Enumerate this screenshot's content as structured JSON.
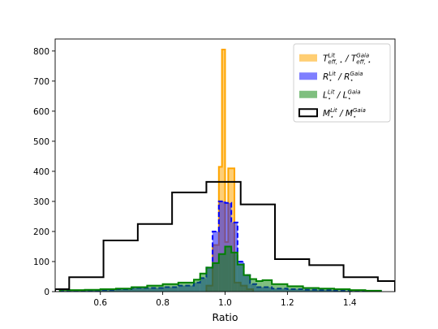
{
  "chart_data": {
    "type": "histogram",
    "xlabel": "Ratio",
    "ylabel": "",
    "xlim": [
      0.455,
      1.545
    ],
    "ylim": [
      0,
      840
    ],
    "xticks": [
      0.6,
      0.8,
      1.0,
      1.2,
      1.4
    ],
    "xtick_labels": [
      "0.6",
      "0.8",
      "1.0",
      "1.2",
      "1.4"
    ],
    "yticks": [
      0,
      100,
      200,
      300,
      400,
      500,
      600,
      700,
      800
    ],
    "ytick_labels": [
      "0",
      "100",
      "200",
      "300",
      "400",
      "500",
      "600",
      "700",
      "800"
    ],
    "legend_position": "upper right",
    "series": [
      {
        "key": "teff",
        "legend": {
          "base": "T",
          "sub1": "eff, ⋆",
          "sup1": "Lit",
          "sep": " / ",
          "base2": "T",
          "sub2": "eff, ⋆",
          "sup2": "Gaia"
        },
        "style": "filled",
        "color": "#ffa500",
        "fill_alpha": 0.55,
        "edges": [
          0.94,
          0.96,
          0.98,
          0.99,
          1.0,
          1.01,
          1.03,
          1.05,
          1.07,
          1.09
        ],
        "counts": [
          20,
          155,
          415,
          805,
          165,
          410,
          30,
          20,
          8
        ]
      },
      {
        "key": "radius",
        "legend": {
          "base": "R",
          "sub1": "⋆",
          "sup1": "Lit",
          "sep": " / ",
          "base2": "R",
          "sub2": "⋆",
          "sup2": "Gaia"
        },
        "style": "filled-dashed",
        "color": "#0000ff",
        "fill_alpha": 0.5,
        "edges": [
          0.47,
          0.5,
          0.55,
          0.6,
          0.65,
          0.7,
          0.75,
          0.8,
          0.85,
          0.9,
          0.92,
          0.94,
          0.96,
          0.98,
          1.0,
          1.02,
          1.04,
          1.06,
          1.08,
          1.1,
          1.15,
          1.2,
          1.25,
          1.3,
          1.35,
          1.4,
          1.45,
          1.5
        ],
        "counts": [
          2,
          3,
          4,
          5,
          8,
          12,
          12,
          15,
          20,
          30,
          45,
          80,
          200,
          300,
          295,
          230,
          100,
          55,
          25,
          15,
          10,
          8,
          6,
          5,
          3,
          2,
          2
        ]
      },
      {
        "key": "lum",
        "legend": {
          "base": "L",
          "sub1": "⋆",
          "sup1": "Lit",
          "sep": " / ",
          "base2": "L",
          "sub2": "⋆",
          "sup2": "Gaia"
        },
        "style": "filled",
        "color": "#008000",
        "fill_alpha": 0.5,
        "edges": [
          0.47,
          0.5,
          0.55,
          0.6,
          0.65,
          0.7,
          0.75,
          0.8,
          0.85,
          0.9,
          0.92,
          0.94,
          0.96,
          0.98,
          1.0,
          1.02,
          1.04,
          1.06,
          1.08,
          1.1,
          1.12,
          1.15,
          1.2,
          1.25,
          1.3,
          1.35,
          1.4,
          1.45,
          1.5
        ],
        "counts": [
          6,
          5,
          6,
          8,
          10,
          15,
          20,
          25,
          30,
          40,
          60,
          80,
          95,
          125,
          150,
          130,
          90,
          55,
          42,
          35,
          38,
          25,
          18,
          12,
          10,
          8,
          5,
          3
        ]
      },
      {
        "key": "mass",
        "legend": {
          "base": "M",
          "sub1": "⋆",
          "sup1": "Lit",
          "sep": " / ",
          "base2": "M",
          "sub2": "⋆",
          "sup2": "Gaia"
        },
        "style": "step",
        "color": "#000000",
        "fill_alpha": 0,
        "edges": [
          0.455,
          0.5,
          0.61,
          0.72,
          0.83,
          0.94,
          1.05,
          1.16,
          1.27,
          1.38,
          1.49,
          1.545
        ],
        "counts": [
          8,
          48,
          170,
          225,
          330,
          365,
          290,
          108,
          88,
          48,
          35
        ]
      }
    ]
  }
}
